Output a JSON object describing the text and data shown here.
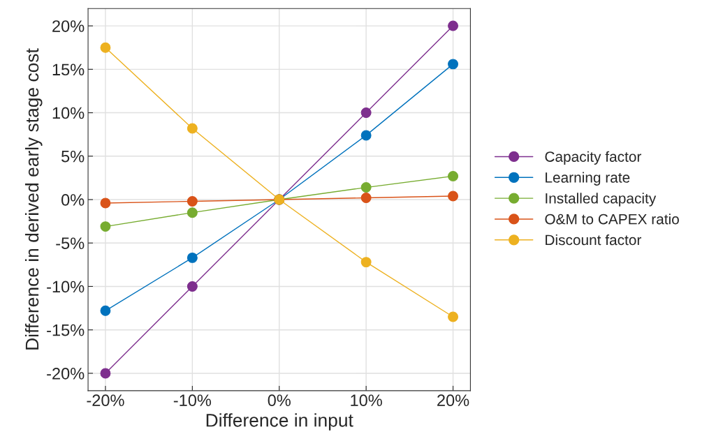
{
  "chart_data": {
    "type": "line",
    "xlabel": "Difference in input",
    "ylabel": "Difference in derived early stage cost",
    "x": [
      -20,
      -10,
      0,
      10,
      20
    ],
    "series": [
      {
        "name": "Capacity factor",
        "color": "#7e2f8e",
        "values": [
          -20,
          -10,
          0,
          10,
          20
        ]
      },
      {
        "name": "Learning rate",
        "color": "#0072bd",
        "values": [
          -12.8,
          -6.7,
          0,
          7.4,
          15.6
        ]
      },
      {
        "name": "Installed capacity",
        "color": "#77ac30",
        "values": [
          -3.1,
          -1.5,
          0,
          1.4,
          2.7
        ]
      },
      {
        "name": "O&M to CAPEX ratio",
        "color": "#d95319",
        "values": [
          -0.4,
          -0.2,
          0,
          0.2,
          0.4
        ]
      },
      {
        "name": "Discount factor",
        "color": "#edb120",
        "values": [
          17.5,
          8.2,
          0,
          -7.2,
          -13.5
        ]
      }
    ],
    "xlim": [
      -22,
      22
    ],
    "xticks": [
      {
        "value": -20,
        "label": "-20%"
      },
      {
        "value": -10,
        "label": "-10%"
      },
      {
        "value": 0,
        "label": "0%"
      },
      {
        "value": 10,
        "label": "10%"
      },
      {
        "value": 20,
        "label": "20%"
      }
    ],
    "ylim": [
      -22,
      22
    ],
    "yticks": [
      {
        "value": -20,
        "label": "-20%"
      },
      {
        "value": -15,
        "label": "-15%"
      },
      {
        "value": -10,
        "label": "-10%"
      },
      {
        "value": -5,
        "label": "-5%"
      },
      {
        "value": 0,
        "label": "0%"
      },
      {
        "value": 5,
        "label": "5%"
      },
      {
        "value": 10,
        "label": "10%"
      },
      {
        "value": 15,
        "label": "15%"
      },
      {
        "value": 20,
        "label": "20%"
      }
    ],
    "grid": true,
    "legend": "right",
    "marker": "circle",
    "line_style": "solid"
  }
}
